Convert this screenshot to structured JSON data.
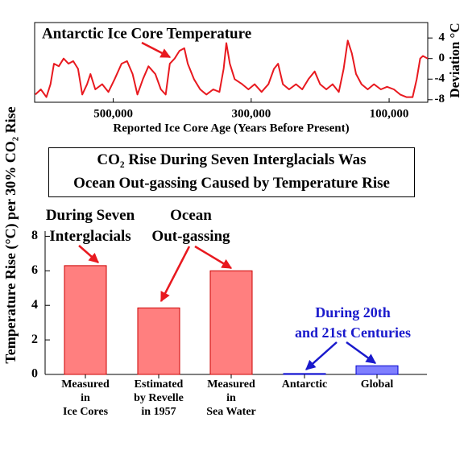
{
  "chart_data": [
    {
      "type": "line",
      "title": "Antarctic Ice Core Temperature",
      "x_label": "Reported Ice Core Age (Years Before Present)",
      "y_label": "Deviation °C",
      "y_axis_position": "right",
      "color": "#e8191f",
      "xlim": [
        614000,
        44000
      ],
      "xticks": [
        {
          "value": 500000,
          "label": "500,000"
        },
        {
          "value": 300000,
          "label": "300,000"
        },
        {
          "value": 100000,
          "label": "100,000"
        }
      ],
      "ylim": [
        -8.5,
        7
      ],
      "yticks": [
        4,
        0,
        -4,
        -8
      ],
      "x": [
        613000,
        605000,
        597000,
        591000,
        586000,
        579000,
        572000,
        565000,
        558000,
        551000,
        545000,
        538000,
        533000,
        526000,
        516000,
        507000,
        498000,
        488000,
        480000,
        472000,
        465000,
        457000,
        449000,
        439000,
        431000,
        424000,
        418000,
        411000,
        404000,
        397000,
        392000,
        383000,
        374000,
        365000,
        355000,
        346000,
        340000,
        336000,
        331000,
        324000,
        313000,
        304000,
        295000,
        285000,
        275000,
        267000,
        261000,
        254000,
        245000,
        235000,
        226000,
        217000,
        208000,
        200000,
        191000,
        182000,
        173000,
        166000,
        160000,
        154000,
        148000,
        140000,
        131000,
        122000,
        112000,
        103000,
        93000,
        84000,
        75000,
        66000,
        60000,
        55000,
        51000,
        44000
      ],
      "values": [
        -7,
        -6,
        -7.5,
        -5,
        -1,
        -1.5,
        0,
        -1,
        -0.5,
        -2,
        -7,
        -5,
        -3,
        -6,
        -5,
        -6.5,
        -4,
        -1,
        -0.5,
        -3,
        -7,
        -4,
        -1.5,
        -3,
        -6,
        -7,
        -1,
        0,
        1.5,
        2,
        -1,
        -4,
        -6,
        -7,
        -6,
        -6.5,
        -2,
        3,
        -1,
        -4,
        -5,
        -6,
        -5,
        -6.5,
        -5,
        -2,
        -1,
        -5,
        -6,
        -5,
        -6,
        -4,
        -2.5,
        -5,
        -6,
        -5,
        -6.5,
        -2,
        3.5,
        1,
        -3,
        -5,
        -6,
        -5,
        -6,
        -5.5,
        -6,
        -7,
        -7.5,
        -7.5,
        -4,
        0,
        0.5,
        0
      ]
    },
    {
      "type": "bar",
      "title": "CO₂ Rise During Seven Interglacials Was\nOcean Out-gassing Caused by Temperature Rise",
      "y_label": "Temperature Rise (°C) per 30%  CO₂ Rise",
      "categories": [
        "Measured\nin\nIce Cores",
        "Estimated\nby Revelle\nin 1957",
        "Measured\nin\nSea Water",
        "Antarctic",
        "Global"
      ],
      "values": [
        6.3,
        3.85,
        6.0,
        0.05,
        0.5
      ],
      "colors": [
        "#ff7f7f",
        "#ff7f7f",
        "#ff7f7f",
        "#7f7fff",
        "#7f7fff"
      ],
      "ylim": [
        0,
        8.3
      ],
      "yticks": [
        0,
        2,
        4,
        6,
        8
      ],
      "annotations": [
        {
          "text": "During Seven\nInterglacials",
          "color": "#000000"
        },
        {
          "text": "Ocean\nOut-gassing",
          "color": "#000000"
        },
        {
          "text": "During 20th\nand 21st Centuries",
          "color": "#1a1acc"
        }
      ]
    }
  ]
}
